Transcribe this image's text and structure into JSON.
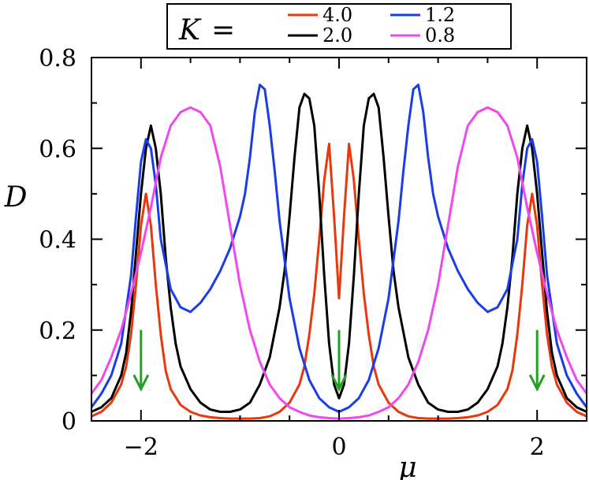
{
  "chart_data": {
    "type": "line",
    "xlabel": "μ",
    "ylabel": "D",
    "xlim": [
      -2.5,
      2.5
    ],
    "ylim": [
      0,
      0.8
    ],
    "xticks": [
      -2,
      0,
      2
    ],
    "xtick_labels": [
      "−2",
      "0",
      "2"
    ],
    "yticks": [
      0,
      0.2,
      0.4,
      0.6,
      0.8
    ],
    "ytick_labels": [
      "0",
      "0.2",
      "0.4",
      "0.6",
      "0.8"
    ],
    "grid": false,
    "legend": {
      "title_k": "K",
      "title_eq": "=",
      "placement": "top"
    },
    "annotations": [
      {
        "type": "arrow",
        "x": -2,
        "y_from": 0.2,
        "y_to": 0.07,
        "color": "#22a022"
      },
      {
        "type": "arrow",
        "x": 0,
        "y_from": 0.2,
        "y_to": 0.07,
        "color": "#22a022"
      },
      {
        "type": "arrow",
        "x": 2,
        "y_from": 0.2,
        "y_to": 0.07,
        "color": "#22a022"
      }
    ],
    "series": [
      {
        "name": "4.0",
        "color": "#e8380d",
        "x": [
          0,
          0.05,
          0.1,
          0.15,
          0.2,
          0.25,
          0.3,
          0.35,
          0.4,
          0.5,
          0.6,
          0.7,
          0.8,
          0.9,
          1.0,
          1.1,
          1.2,
          1.3,
          1.4,
          1.5,
          1.6,
          1.7,
          1.75,
          1.8,
          1.85,
          1.9,
          1.95,
          2.0,
          2.05,
          2.1,
          2.15,
          2.2,
          2.3,
          2.4,
          2.5
        ],
        "y": [
          0.27,
          0.45,
          0.61,
          0.53,
          0.4,
          0.28,
          0.19,
          0.12,
          0.08,
          0.04,
          0.02,
          0.01,
          0.006,
          0.005,
          0.005,
          0.005,
          0.006,
          0.008,
          0.012,
          0.02,
          0.035,
          0.07,
          0.11,
          0.19,
          0.3,
          0.43,
          0.5,
          0.43,
          0.3,
          0.19,
          0.12,
          0.08,
          0.04,
          0.02,
          0.01
        ]
      },
      {
        "name": "2.0",
        "color": "#000000",
        "x": [
          0,
          0.05,
          0.1,
          0.15,
          0.2,
          0.25,
          0.3,
          0.35,
          0.4,
          0.45,
          0.5,
          0.55,
          0.6,
          0.7,
          0.8,
          0.9,
          1.0,
          1.1,
          1.2,
          1.3,
          1.4,
          1.5,
          1.6,
          1.65,
          1.7,
          1.75,
          1.8,
          1.85,
          1.9,
          1.95,
          2.0,
          2.05,
          2.1,
          2.15,
          2.2,
          2.3,
          2.4,
          2.5
        ],
        "y": [
          0.05,
          0.08,
          0.17,
          0.32,
          0.5,
          0.65,
          0.71,
          0.72,
          0.69,
          0.58,
          0.45,
          0.33,
          0.25,
          0.14,
          0.08,
          0.04,
          0.025,
          0.02,
          0.02,
          0.025,
          0.04,
          0.07,
          0.12,
          0.17,
          0.25,
          0.36,
          0.5,
          0.6,
          0.65,
          0.6,
          0.5,
          0.37,
          0.24,
          0.15,
          0.1,
          0.05,
          0.03,
          0.02
        ]
      },
      {
        "name": "1.2",
        "color": "#1a3de8",
        "x": [
          0,
          0.1,
          0.2,
          0.3,
          0.4,
          0.5,
          0.6,
          0.65,
          0.7,
          0.75,
          0.8,
          0.85,
          0.9,
          0.95,
          1.0,
          1.1,
          1.2,
          1.3,
          1.4,
          1.5,
          1.6,
          1.7,
          1.8,
          1.85,
          1.9,
          1.95,
          2.0,
          2.05,
          2.1,
          2.2,
          2.3,
          2.4,
          2.5
        ],
        "y": [
          0.02,
          0.03,
          0.05,
          0.09,
          0.16,
          0.27,
          0.44,
          0.55,
          0.65,
          0.73,
          0.74,
          0.68,
          0.58,
          0.5,
          0.45,
          0.38,
          0.33,
          0.29,
          0.26,
          0.24,
          0.25,
          0.29,
          0.4,
          0.52,
          0.6,
          0.62,
          0.57,
          0.45,
          0.32,
          0.17,
          0.1,
          0.06,
          0.03
        ]
      },
      {
        "name": "0.8",
        "color": "#f048f0",
        "x": [
          0,
          0.1,
          0.2,
          0.3,
          0.4,
          0.5,
          0.6,
          0.7,
          0.8,
          0.9,
          1.0,
          1.1,
          1.2,
          1.3,
          1.4,
          1.5,
          1.6,
          1.7,
          1.8,
          1.9,
          2.0,
          2.1,
          2.2,
          2.3,
          2.4,
          2.5
        ],
        "y": [
          0.005,
          0.006,
          0.008,
          0.012,
          0.02,
          0.03,
          0.05,
          0.08,
          0.13,
          0.2,
          0.3,
          0.43,
          0.56,
          0.65,
          0.68,
          0.69,
          0.68,
          0.65,
          0.58,
          0.47,
          0.37,
          0.28,
          0.2,
          0.14,
          0.09,
          0.06
        ]
      }
    ]
  }
}
